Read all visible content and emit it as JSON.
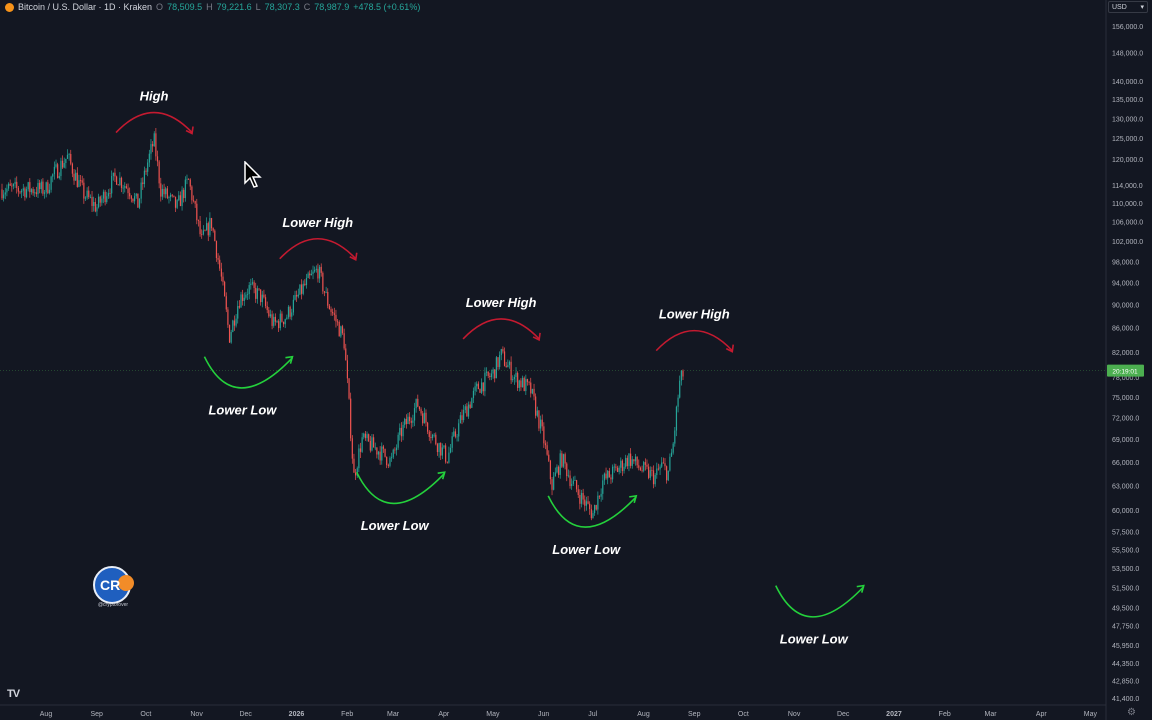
{
  "header": {
    "symbol": "Bitcoin / U.S. Dollar · 1D · Kraken",
    "open_label": "O",
    "open": "78,509.5",
    "high_label": "H",
    "high": "79,221.6",
    "low_label": "L",
    "low": "78,307.3",
    "close_label": "C",
    "close": "78,987.9",
    "change": "+478.5 (+0.61%)"
  },
  "currency_selector": "USD",
  "watermark_handle": "@cryptorover",
  "badge_text": "CR",
  "last_price_tag": "20:19:01",
  "colors": {
    "background": "#131722",
    "up": "#26a69a",
    "down": "#ef5350",
    "high_arc": "#c41a30",
    "low_arc": "#24d13c",
    "price_tag": "#4caf50"
  },
  "chart_data": {
    "type": "candlestick",
    "title": "",
    "xlabel": "",
    "ylabel": "",
    "ylim": [
      40500,
      158500
    ],
    "log_scale": true,
    "y_ticks": [
      "156,000.0",
      "148,000.0",
      "140,000.0",
      "135,000.0",
      "130,000.0",
      "125,000.0",
      "120,000.0",
      "114,000.0",
      "110,000.0",
      "106,000.0",
      "102,000.0",
      "98,000.0",
      "94,000.0",
      "90,000.0",
      "86,000.0",
      "82,000.0",
      "78,000.0",
      "75,000.0",
      "72,000.0",
      "69,000.0",
      "66,000.0",
      "63,000.0",
      "60,000.0",
      "57,500.0",
      "55,500.0",
      "53,500.0",
      "51,500.0",
      "49,500.0",
      "47,750.0",
      "45,950.0",
      "44,350.0",
      "42,850.0",
      "41,400.0"
    ],
    "x_ticks": [
      "Aug",
      "Sep",
      "Oct",
      "Nov",
      "Dec",
      "2026",
      "Feb",
      "Mar",
      "Apr",
      "May",
      "Jun",
      "Jul",
      "Aug",
      "Sep",
      "Oct",
      "Nov",
      "Dec",
      "2027",
      "Feb",
      "Mar",
      "Apr",
      "May"
    ],
    "price_path": [
      [
        "2025-08-01",
        113000
      ],
      [
        "2025-08-05",
        116000
      ],
      [
        "2025-08-14",
        120500
      ],
      [
        "2025-08-19",
        116000
      ],
      [
        "2025-08-24",
        112000
      ],
      [
        "2025-09-01",
        109000
      ],
      [
        "2025-09-06",
        112000
      ],
      [
        "2025-09-13",
        116000
      ],
      [
        "2025-09-22",
        112500
      ],
      [
        "2025-09-26",
        109500
      ],
      [
        "2025-10-02",
        119000
      ],
      [
        "2025-10-06",
        124500
      ],
      [
        "2025-10-10",
        113000
      ],
      [
        "2025-10-15",
        111000
      ],
      [
        "2025-10-20",
        109000
      ],
      [
        "2025-10-27",
        115000
      ],
      [
        "2025-11-04",
        102000
      ],
      [
        "2025-11-10",
        106000
      ],
      [
        "2025-11-16",
        95000
      ],
      [
        "2025-11-21",
        84500
      ],
      [
        "2025-11-27",
        91000
      ],
      [
        "2025-12-03",
        93000
      ],
      [
        "2025-12-10",
        91500
      ],
      [
        "2025-12-18",
        86500
      ],
      [
        "2025-12-26",
        88000
      ],
      [
        "2026-01-05",
        93000
      ],
      [
        "2026-01-14",
        96500
      ],
      [
        "2026-01-20",
        90500
      ],
      [
        "2026-01-30",
        84000
      ],
      [
        "2026-02-05",
        64000
      ],
      [
        "2026-02-10",
        69000
      ],
      [
        "2026-02-20",
        67500
      ],
      [
        "2026-02-28",
        66000
      ],
      [
        "2026-03-06",
        70000
      ],
      [
        "2026-03-16",
        74000
      ],
      [
        "2026-03-25",
        69500
      ],
      [
        "2026-04-03",
        66500
      ],
      [
        "2026-04-12",
        72000
      ],
      [
        "2026-04-22",
        76500
      ],
      [
        "2026-05-01",
        78500
      ],
      [
        "2026-05-06",
        81500
      ],
      [
        "2026-05-14",
        78000
      ],
      [
        "2026-05-24",
        76000
      ],
      [
        "2026-06-01",
        69000
      ],
      [
        "2026-06-06",
        63000
      ],
      [
        "2026-06-12",
        66500
      ],
      [
        "2026-06-18",
        63500
      ],
      [
        "2026-06-24",
        61500
      ],
      [
        "2026-07-01",
        59500
      ],
      [
        "2026-07-07",
        63500
      ],
      [
        "2026-07-16",
        65000
      ],
      [
        "2026-07-23",
        66500
      ],
      [
        "2026-07-31",
        65000
      ],
      [
        "2026-08-08",
        64000
      ],
      [
        "2026-08-12",
        65500
      ],
      [
        "2026-08-16",
        64500
      ],
      [
        "2026-08-19",
        68000
      ],
      [
        "2026-08-23",
        77000
      ],
      [
        "2026-08-26",
        79000
      ]
    ],
    "annotations": [
      {
        "text": "High",
        "type": "high",
        "date": "2025-10-06",
        "price": 131500
      },
      {
        "text": "Lower High",
        "type": "high",
        "date": "2026-01-14",
        "price": 102500
      },
      {
        "text": "Lower Low",
        "type": "low",
        "date": "2025-11-29",
        "price": 77000
      },
      {
        "text": "Lower High",
        "type": "high",
        "date": "2026-05-06",
        "price": 87500
      },
      {
        "text": "Lower Low",
        "type": "low",
        "date": "2026-03-02",
        "price": 61300
      },
      {
        "text": "Lower Low",
        "type": "low",
        "date": "2026-06-27",
        "price": 58500
      },
      {
        "text": "Lower High",
        "type": "high",
        "date": "2026-09-01",
        "price": 85500
      },
      {
        "text": "Lower Low",
        "type": "low",
        "date": "2026-11-13",
        "price": 49000
      }
    ]
  }
}
